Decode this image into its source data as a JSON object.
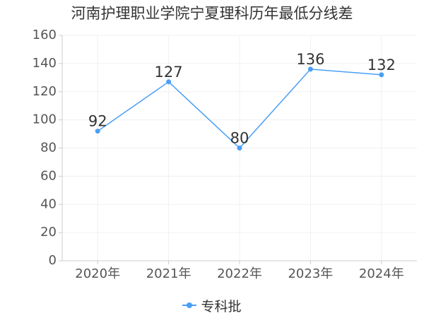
{
  "chart_data": {
    "type": "line",
    "title": "河南护理职业学院宁夏理科历年最低分线差",
    "categories": [
      "2020年",
      "2021年",
      "2022年",
      "2023年",
      "2024年"
    ],
    "series": [
      {
        "name": "专科批",
        "values": [
          92,
          127,
          80,
          136,
          132
        ],
        "color": "#4a9ff5"
      }
    ],
    "ylim": [
      0,
      160
    ],
    "yticks": [
      "0",
      "20",
      "40",
      "60",
      "80",
      "100",
      "120",
      "140",
      "160"
    ],
    "grid": true,
    "legend": "bottom-center"
  }
}
